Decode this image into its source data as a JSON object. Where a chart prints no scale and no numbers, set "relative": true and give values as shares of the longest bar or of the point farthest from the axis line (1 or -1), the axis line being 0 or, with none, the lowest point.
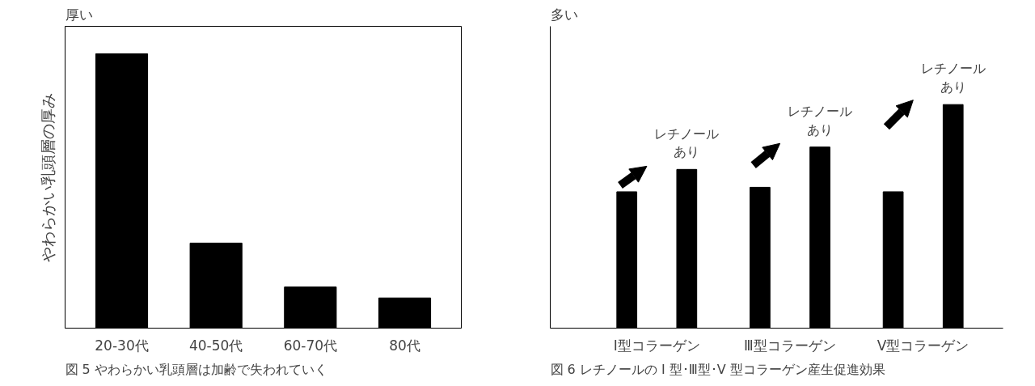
{
  "chart_data": [
    {
      "type": "bar",
      "relative": true,
      "title": "図 5  やわらかい乳頭層は加齢で失われていく",
      "ylabel": "やわらかい乳頭層の厚み",
      "annotations": [
        "厚い"
      ],
      "categories": [
        "20-30代",
        "40-50代",
        "60-70代",
        "80代"
      ],
      "series": [
        {
          "color": "#000000",
          "values": [
            1,
            0.31,
            0.15,
            0.11
          ]
        }
      ]
    },
    {
      "type": "bar",
      "relative": true,
      "title": "図 6  レチノールの I 型･Ⅲ型･V 型コラーゲン産生促進効果",
      "ylabel": "多い",
      "categories": [
        "I型コラーゲン",
        "Ⅲ型コラーゲン",
        "V型コラーゲン"
      ],
      "series": [
        {
          "color": "#000000",
          "values": [
            0.61,
            0.63,
            0.61
          ]
        },
        {
          "color": "#000000",
          "values": [
            0.71,
            0.81,
            1
          ]
        }
      ],
      "annotations": [
        "レチノールあり",
        "レチノールあり",
        "レチノールあり"
      ]
    }
  ]
}
